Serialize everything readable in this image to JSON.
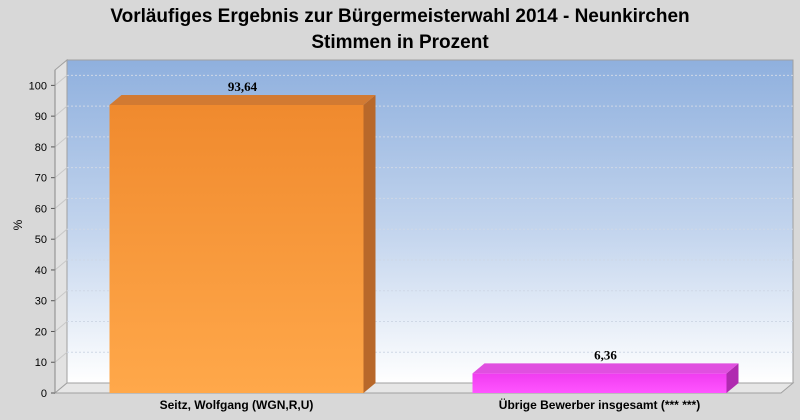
{
  "chart_data": {
    "type": "bar",
    "title": "Vorläufiges Ergebnis zur Bürgermeisterwahl 2014 - Neunkirchen",
    "subtitle": "Stimmen in Prozent",
    "ylabel": "%",
    "xlabel": "",
    "categories": [
      "Seitz, Wolfgang (WGN,R,U)",
      "Übrige Bewerber insgesamt (***  ***)"
    ],
    "values": [
      93.64,
      6.36
    ],
    "value_labels": [
      "93,64",
      "6,36"
    ],
    "colors": [
      "#f4973a",
      "#f53ff5"
    ],
    "ylim": [
      0,
      105
    ],
    "yticks": [
      0,
      10,
      20,
      30,
      40,
      50,
      60,
      70,
      80,
      90,
      100
    ],
    "grid": true,
    "legend": "none"
  }
}
